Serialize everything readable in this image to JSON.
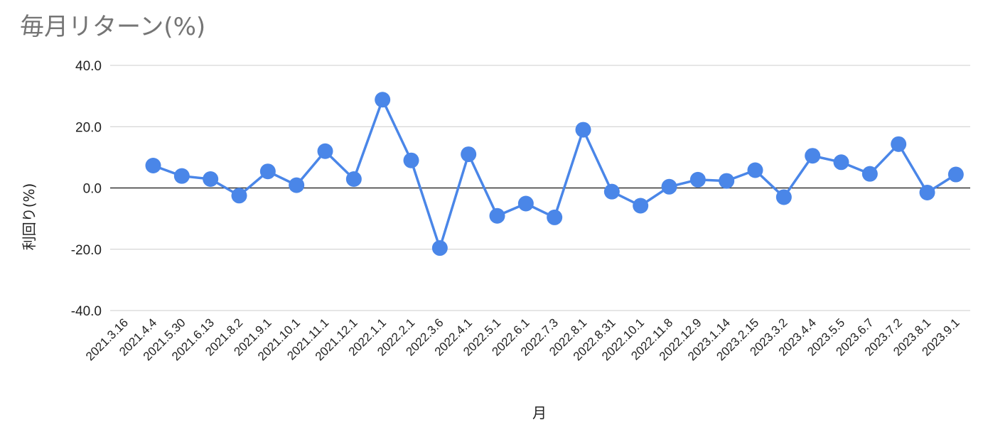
{
  "chart_data": {
    "type": "line",
    "title": "毎月リターン(%)",
    "xlabel": "月",
    "ylabel": "利回り(%)",
    "ylim": [
      -40,
      40
    ],
    "yticks": [
      40,
      20,
      0,
      -20,
      -40
    ],
    "ytick_labels": [
      "40.0",
      "20.0",
      "0.0",
      "-20.0",
      "-40.0"
    ],
    "grid": true,
    "legend": "none",
    "categories": [
      "2021.3.16",
      "2021.4.4",
      "2021.5.30",
      "2021.6.13",
      "2021.8.2",
      "2021.9.1",
      "2021.10.1",
      "2021.11.1",
      "2021.12.1",
      "2022.1.1",
      "2022.2.1",
      "2022.3.6",
      "2022.4.1",
      "2022.5.1",
      "2022.6.1",
      "2022.7.3",
      "2022.8.1",
      "2022.8.31",
      "2022.10.1",
      "2022.11.8",
      "2022.12.9",
      "2023.1.14",
      "2023.2.15",
      "2023.3.2",
      "2023.4.4",
      "2023.5.5",
      "2023.6.7",
      "2023.7.2",
      "2023.8.1",
      "2023.9.1"
    ],
    "series": [
      {
        "color": "#4a86e8",
        "values": [
          null,
          7.3,
          3.9,
          2.9,
          -2.5,
          5.4,
          0.9,
          12.0,
          2.9,
          28.8,
          9.0,
          -19.6,
          11.0,
          -9.1,
          -5.1,
          -9.6,
          19.0,
          -1.2,
          -5.8,
          0.4,
          2.7,
          2.3,
          5.8,
          -3.0,
          10.5,
          8.4,
          4.6,
          14.3,
          -1.5,
          4.4
        ]
      }
    ],
    "colors": {
      "line": "#4a86e8",
      "grid": "#cccccc",
      "zero_line": "#333333",
      "title": "#757575",
      "text": "#222222"
    }
  }
}
